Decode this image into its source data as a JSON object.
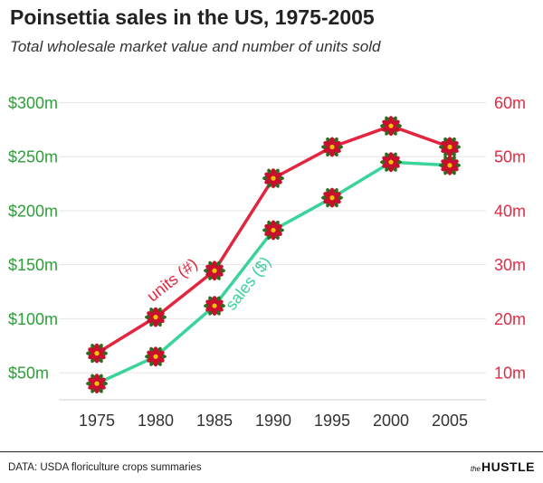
{
  "chart_data": {
    "type": "line",
    "title": "Poinsettia sales in the US, 1975-2005",
    "subtitle": "Total wholesale market value and number of units sold",
    "x": [
      1975,
      1980,
      1985,
      1990,
      1995,
      2000,
      2005
    ],
    "x_tick_labels": [
      "1975",
      "1980",
      "1985",
      "1990",
      "1995",
      "2000",
      "2005"
    ],
    "left_axis": {
      "ticks": [
        "$50m",
        "$100m",
        "$150m",
        "$200m",
        "$250m",
        "$300m"
      ],
      "tick_values": [
        50,
        100,
        150,
        200,
        250,
        300
      ],
      "range": [
        25,
        300
      ],
      "color": "#2e9e3a"
    },
    "right_axis": {
      "ticks": [
        "10m",
        "20m",
        "30m",
        "40m",
        "50m",
        "60m"
      ],
      "tick_values": [
        10,
        20,
        30,
        40,
        50,
        60
      ],
      "range": [
        5,
        60
      ],
      "color": "#e02b43"
    },
    "series": [
      {
        "name": "units (#)",
        "axis": "right",
        "color": "#e3263f",
        "values": [
          13.6,
          20.3,
          28.9,
          46.0,
          51.8,
          55.7,
          51.8
        ]
      },
      {
        "name": "sales ($)",
        "axis": "left",
        "color": "#3ad39a",
        "values": [
          40,
          65,
          112,
          182,
          212,
          245,
          242
        ]
      }
    ],
    "grid": "horizontal"
  },
  "footer": {
    "source": "DATA: USDA floriculture crops summaries",
    "brand_prefix": "the",
    "brand": "HUSTLE"
  },
  "colors": {
    "flower_red": "#c8102e",
    "flower_leaf": "#2e6b1f",
    "flower_center": "#f2c400"
  }
}
